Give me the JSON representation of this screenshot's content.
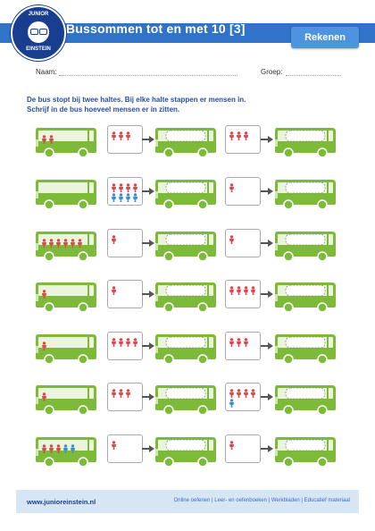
{
  "header": {
    "title": "Bussommen tot en met 10 [3]",
    "tab_label": "Rekenen",
    "logo_top": "JUNIOR",
    "logo_bottom": "EINSTEIN"
  },
  "fields": {
    "name_label": "Naam:",
    "group_label": "Groep:"
  },
  "instructions": {
    "line1": "De bus stopt bij twee haltes. Bij elke halte stappen er mensen in.",
    "line2": "Schrijf in de bus hoeveel mensen er in zitten."
  },
  "colors": {
    "bus_green": "#7dba3a",
    "header_blue": "#2f74c9",
    "person_red": "#e0474c",
    "person_blue": "#3a8fd6"
  },
  "exercises": [
    {
      "bus_red": 2,
      "bus_blue": 0,
      "stop1_red": 3,
      "stop1_blue": 0,
      "stop2_red": 3,
      "stop2_blue": 0
    },
    {
      "bus_red": 0,
      "bus_blue": 0,
      "stop1_red": 4,
      "stop1_blue": 4,
      "stop2_red": 1,
      "stop2_blue": 0
    },
    {
      "bus_red": 6,
      "bus_blue": 0,
      "stop1_red": 1,
      "stop1_blue": 0,
      "stop2_red": 1,
      "stop2_blue": 0
    },
    {
      "bus_red": 1,
      "bus_blue": 0,
      "stop1_red": 1,
      "stop1_blue": 0,
      "stop2_red": 4,
      "stop2_blue": 0
    },
    {
      "bus_red": 1,
      "bus_blue": 0,
      "stop1_red": 4,
      "stop1_blue": 0,
      "stop2_red": 3,
      "stop2_blue": 0
    },
    {
      "bus_red": 1,
      "bus_blue": 0,
      "stop1_red": 3,
      "stop1_blue": 0,
      "stop2_red": 4,
      "stop2_blue": 1
    },
    {
      "bus_red": 3,
      "bus_blue": 2,
      "stop1_red": 1,
      "stop1_blue": 0,
      "stop2_red": 1,
      "stop2_blue": 0
    }
  ],
  "footer": {
    "url": "www.junioreinstein.nl",
    "links": "Online oefenen | Leer- en oefenboeken | Werkbladen | Educatief materiaal"
  }
}
